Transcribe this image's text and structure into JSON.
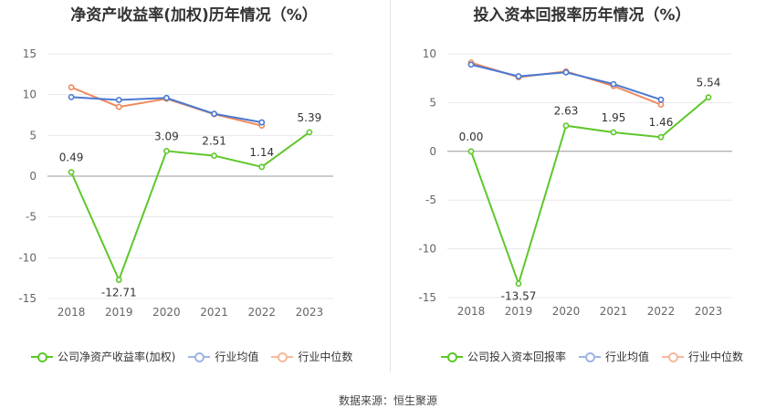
{
  "charts": [
    {
      "title": "净资产收益率(加权)历年情况（%）",
      "chart_data": {
        "type": "line",
        "categories": [
          "2018",
          "2019",
          "2020",
          "2021",
          "2022",
          "2023"
        ],
        "ylim": [
          -15,
          15
        ],
        "yticks": [
          15,
          10,
          5,
          0,
          -5,
          -10,
          -15
        ],
        "grid": true,
        "legend_position": "bottom",
        "series": [
          {
            "name": "公司净资产收益率(加权)",
            "color": "#5ec72b",
            "values": [
              0.49,
              -12.71,
              3.09,
              2.51,
              1.14,
              5.39
            ],
            "labels": [
              "0.49",
              "-12.71",
              "3.09",
              "2.51",
              "1.14",
              "5.39"
            ]
          },
          {
            "name": "行业均值",
            "color": "#4a78d2",
            "values": [
              9.7,
              9.35,
              9.6,
              7.65,
              6.6,
              null
            ]
          },
          {
            "name": "行业中位数",
            "color": "#f08a5d",
            "values": [
              10.9,
              8.5,
              9.5,
              7.6,
              6.2,
              null
            ]
          }
        ]
      }
    },
    {
      "title": "投入资本回报率历年情况（%）",
      "chart_data": {
        "type": "line",
        "categories": [
          "2018",
          "2019",
          "2020",
          "2021",
          "2022",
          "2023"
        ],
        "ylim": [
          -15,
          10
        ],
        "yticks": [
          10,
          5,
          0,
          -5,
          -10,
          -15
        ],
        "grid": true,
        "legend_position": "bottom",
        "series": [
          {
            "name": "公司投入资本回报率",
            "color": "#5ec72b",
            "values": [
              0.0,
              -13.57,
              2.63,
              1.95,
              1.46,
              5.54
            ],
            "labels": [
              "0.00",
              "-13.57",
              "2.63",
              "1.95",
              "1.46",
              "5.54"
            ]
          },
          {
            "name": "行业均值",
            "color": "#4a78d2",
            "values": [
              8.9,
              7.7,
              8.1,
              6.9,
              5.3,
              null
            ]
          },
          {
            "name": "行业中位数",
            "color": "#f08a5d",
            "values": [
              9.1,
              7.6,
              8.2,
              6.7,
              4.8,
              null
            ]
          }
        ]
      }
    }
  ],
  "source": "数据来源：恒生聚源"
}
